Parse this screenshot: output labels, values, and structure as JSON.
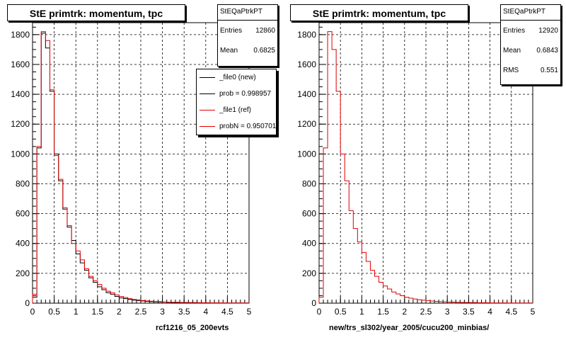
{
  "charts": [
    {
      "title": "StE primtrk: momentum, tpc",
      "stats": {
        "name": "StEQaPtrkPT",
        "rows": [
          {
            "label": "Entries",
            "value": "12860"
          },
          {
            "label": "Mean",
            "value": "0.6825"
          }
        ]
      },
      "legend": [
        {
          "label": "_file0 (new)",
          "color": "#000000"
        },
        {
          "label": "prob = 0.998957",
          "color": "#000000"
        },
        {
          "label": "_file1 (ref)",
          "color": "#e00000"
        },
        {
          "label": "probN = 0.950701",
          "color": "#e00000"
        }
      ],
      "footer": "rcf1216_05_200evts"
    },
    {
      "title": "StE primtrk: momentum, tpc",
      "stats": {
        "name": "StEQaPtrkPT",
        "rows": [
          {
            "label": "Entries",
            "value": "12920"
          },
          {
            "label": "Mean",
            "value": "0.6843"
          },
          {
            "label": "RMS",
            "value": "0.551"
          }
        ]
      },
      "footer": "new/trs_sl302/year_2005/cucu200_minbias/"
    }
  ],
  "chart_data": [
    {
      "type": "histogram",
      "title": "StE primtrk: momentum, tpc",
      "xlim": [
        0,
        5
      ],
      "ylim": [
        0,
        1880
      ],
      "xticks": [
        "0",
        "0.5",
        "1",
        "1.5",
        "2",
        "2.5",
        "3",
        "3.5",
        "4",
        "4.5",
        "5"
      ],
      "yticks": [
        "0",
        "200",
        "400",
        "600",
        "800",
        "1000",
        "1200",
        "1400",
        "1600",
        "1800"
      ],
      "grid": true,
      "bin_width": 0.1,
      "series": [
        {
          "name": "_file0 (new)",
          "color": "#000000",
          "values": [
            40,
            1040,
            1810,
            1710,
            1420,
            1000,
            820,
            630,
            510,
            420,
            330,
            270,
            220,
            170,
            140,
            110,
            90,
            70,
            60,
            45,
            35,
            30,
            25,
            20,
            18,
            15,
            12,
            10,
            9,
            8,
            7,
            6,
            5,
            5,
            4,
            4,
            3,
            3,
            3,
            2,
            2,
            2,
            2,
            1,
            1,
            1,
            1,
            1,
            1,
            1
          ]
        },
        {
          "name": "_file1 (ref)",
          "color": "#e00000",
          "values": [
            60,
            1050,
            1820,
            1760,
            1430,
            990,
            830,
            640,
            520,
            400,
            350,
            290,
            230,
            180,
            150,
            125,
            100,
            80,
            70,
            55,
            45,
            38,
            30,
            25,
            22,
            18,
            15,
            13,
            11,
            10,
            8,
            7,
            6,
            6,
            5,
            5,
            4,
            4,
            3,
            3,
            3,
            2,
            2,
            2,
            2,
            1,
            1,
            1,
            1,
            1
          ]
        }
      ]
    },
    {
      "type": "histogram",
      "title": "StE primtrk: momentum, tpc",
      "xlim": [
        0,
        5
      ],
      "ylim": [
        0,
        1880
      ],
      "xticks": [
        "0",
        "0.5",
        "1",
        "1.5",
        "2",
        "2.5",
        "3",
        "3.5",
        "4",
        "4.5",
        "5"
      ],
      "yticks": [
        "0",
        "200",
        "400",
        "600",
        "800",
        "1000",
        "1200",
        "1400",
        "1600",
        "1800"
      ],
      "grid": true,
      "bin_width": 0.1,
      "series": [
        {
          "color": "#e00000",
          "values": [
            40,
            1040,
            1820,
            1700,
            1420,
            1000,
            820,
            620,
            500,
            410,
            340,
            280,
            220,
            180,
            140,
            115,
            95,
            75,
            62,
            50,
            40,
            33,
            28,
            23,
            20,
            17,
            14,
            12,
            10,
            9,
            8,
            7,
            6,
            5,
            5,
            4,
            4,
            3,
            3,
            3,
            2,
            2,
            2,
            2,
            1,
            1,
            1,
            1,
            1,
            1
          ]
        }
      ]
    }
  ]
}
